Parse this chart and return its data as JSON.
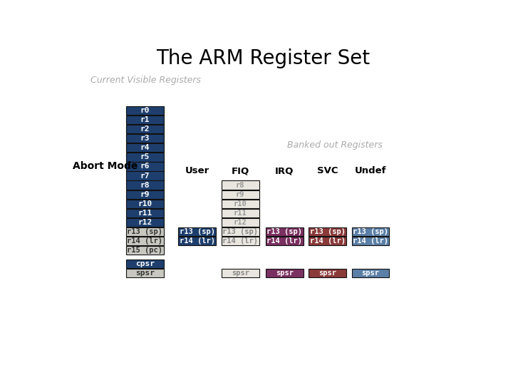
{
  "title": "The ARM Register Set",
  "subtitle_left": "Current Visible Registers",
  "subtitle_right": "Banked out Registers",
  "abort_label": "Abort Mode",
  "col_headers": [
    "User",
    "FIQ",
    "IRQ",
    "SVC",
    "Undef"
  ],
  "main_regs": [
    "r0",
    "r1",
    "r2",
    "r3",
    "r4",
    "r5",
    "r6",
    "r7",
    "r8",
    "r9",
    "r10",
    "r11",
    "r12"
  ],
  "banked_regs_abort": [
    "r13 (sp)",
    "r14 (lr)",
    "r15 (pc)"
  ],
  "color_main": "#1e3f6e",
  "color_abort_banked": "#c8c8c0",
  "color_user": "#1e3f6e",
  "color_fiq": "#e8e6de",
  "color_irq": "#7a3060",
  "color_svc": "#8b3a3a",
  "color_undef": "#5b7fa6",
  "color_cpsr": "#1e3f6e",
  "color_spsr_abort": "#c8c8c0",
  "subtitle_color": "#aaaaaa",
  "background": "#ffffff"
}
